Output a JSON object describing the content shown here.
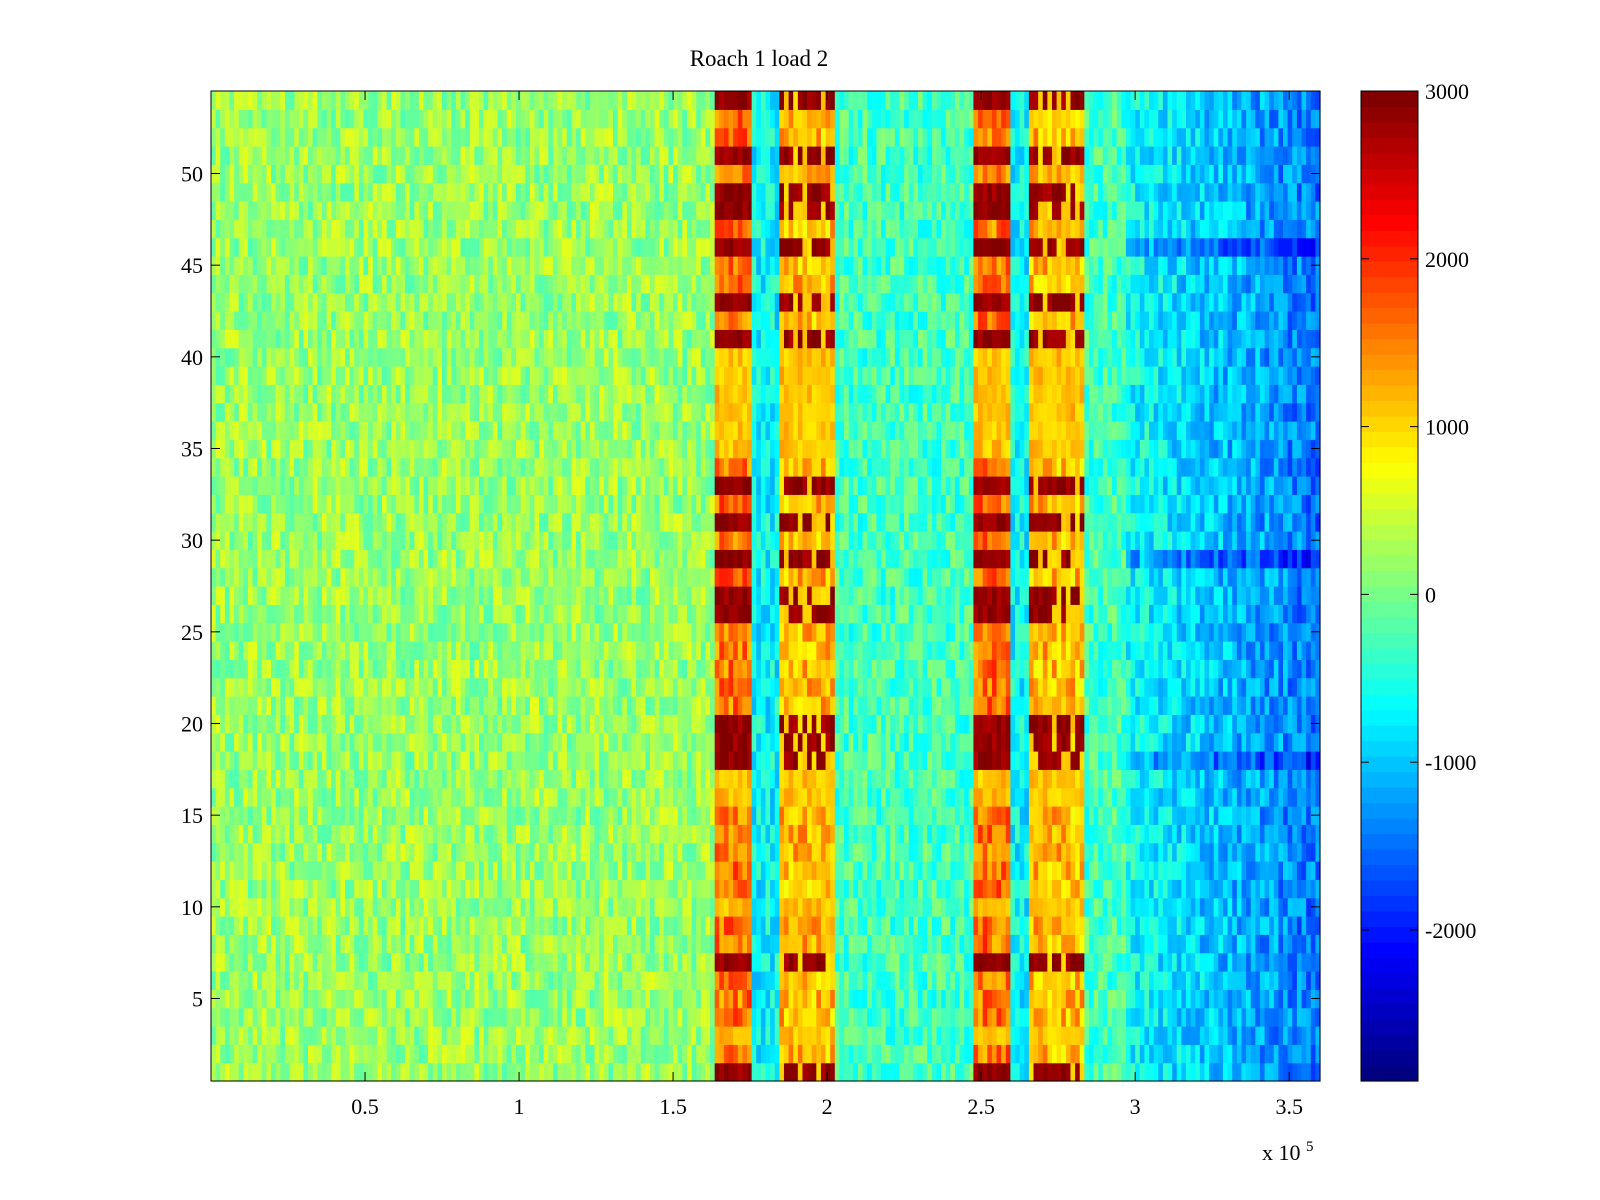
{
  "chart_data": {
    "type": "heatmap",
    "title": "Roach 1 load 2",
    "xlabel": "",
    "ylabel": "",
    "x_exponent_label": "x 10",
    "x_exponent": "5",
    "xlim": [
      0,
      360000
    ],
    "ylim": [
      0.5,
      54.5
    ],
    "rows": 54,
    "xticks": [
      50000,
      100000,
      150000,
      200000,
      250000,
      300000,
      350000
    ],
    "xtick_labels": [
      "0.5",
      "1",
      "1.5",
      "2",
      "2.5",
      "3",
      "3.5"
    ],
    "yticks": [
      5,
      10,
      15,
      20,
      25,
      30,
      35,
      40,
      45,
      50
    ],
    "ytick_labels": [
      "5",
      "10",
      "15",
      "20",
      "25",
      "30",
      "35",
      "40",
      "45",
      "50"
    ],
    "colorbar": {
      "colormap": "jet",
      "range": [
        -2900,
        3000
      ],
      "ticks": [
        -2000,
        -1000,
        0,
        1000,
        2000,
        3000
      ],
      "tick_labels": [
        "-2000",
        "-1000",
        "0",
        "1000",
        "2000",
        "3000"
      ]
    },
    "regions": [
      {
        "x_from": 0,
        "x_to": 164000,
        "value_approx": 200,
        "description": "near-zero noise"
      },
      {
        "x_from": 164000,
        "x_to": 176000,
        "value_approx": 1600,
        "description": "high band, strong rows reach 3000"
      },
      {
        "x_from": 176000,
        "x_to": 185000,
        "value_approx": -700,
        "description": "gap"
      },
      {
        "x_from": 185000,
        "x_to": 203000,
        "value_approx": 1200,
        "description": "striped high band"
      },
      {
        "x_from": 203000,
        "x_to": 248000,
        "value_approx": -300,
        "description": "near-zero noise"
      },
      {
        "x_from": 248000,
        "x_to": 260000,
        "value_approx": 1600,
        "description": "high band, strong rows reach 3000"
      },
      {
        "x_from": 260000,
        "x_to": 266000,
        "value_approx": -700,
        "description": "gap"
      },
      {
        "x_from": 266000,
        "x_to": 283000,
        "value_approx": 1200,
        "description": "striped high band"
      },
      {
        "x_from": 283000,
        "x_to": 297000,
        "value_approx": -300,
        "description": "transition"
      },
      {
        "x_from": 297000,
        "x_to": 360000,
        "value_approx": -1200,
        "description": "negative region"
      }
    ],
    "strong_rows": [
      1,
      7,
      18,
      19,
      20,
      26,
      27,
      29,
      31,
      33,
      41,
      43,
      46,
      48,
      49,
      51,
      54
    ],
    "weak_rows": [
      3,
      10,
      16,
      17,
      35,
      36,
      37,
      38,
      39,
      40
    ]
  }
}
